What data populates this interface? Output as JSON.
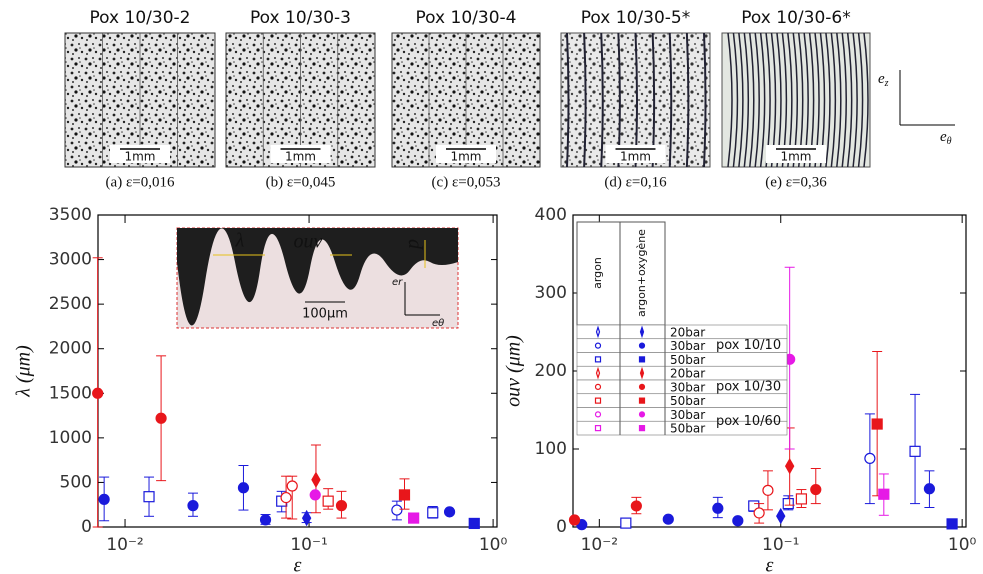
{
  "panels": [
    {
      "title": "Pox 10/30-2",
      "caption": "(a) ε=0,016",
      "scale": "1mm"
    },
    {
      "title": "Pox 10/30-3",
      "caption": "(b) ε=0,045",
      "scale": "1mm"
    },
    {
      "title": "Pox 10/30-4",
      "caption": "(c) ε=0,053",
      "scale": "1mm"
    },
    {
      "title": "Pox 10/30-5*",
      "caption": "(d) ε=0,16",
      "scale": "1mm"
    },
    {
      "title": "Pox 10/30-6*",
      "caption": "(e) ε=0,36",
      "scale": "1mm"
    }
  ],
  "frame": {
    "ez": {
      "base": "e",
      "sub": "z"
    },
    "etheta": {
      "base": "e",
      "sub": "θ"
    }
  },
  "chart_data": [
    {
      "type": "scatter",
      "xlabel": "ε",
      "ylabel": "λ (μm)",
      "xscale": "log",
      "xlim": [
        0.00713,
        1.05
      ],
      "xticks": [
        {
          "value": 0.01,
          "label": "10⁻²"
        },
        {
          "value": 0.1,
          "label": "10⁻¹"
        },
        {
          "value": 1,
          "label": "10⁰"
        }
      ],
      "ylim": [
        0,
        3500
      ],
      "yticks": [
        0,
        500,
        1000,
        1500,
        2000,
        2500,
        3000,
        3500
      ],
      "inset": {
        "lambda": "λ",
        "ouv": "ouv",
        "p": "p",
        "er": "er",
        "etheta": "eθ",
        "scale": "100μm"
      },
      "series": [
        {
          "color": "#1a1adb",
          "marker": "circle",
          "filled": true,
          "x": [
            0.0077,
            0.0234,
            0.044,
            0.058,
            0.58
          ],
          "values": [
            310,
            240,
            440,
            80,
            170
          ],
          "ylow": [
            70,
            120,
            190,
            30,
            null
          ],
          "yhigh": [
            560,
            380,
            690,
            140,
            null
          ]
        },
        {
          "color": "#1a1adb",
          "marker": "square",
          "filled": false,
          "x": [
            0.0135,
            0.071,
            0.47
          ],
          "values": [
            340,
            290,
            160
          ],
          "ylow": [
            120,
            170,
            100
          ],
          "yhigh": [
            560,
            400,
            230
          ]
        },
        {
          "color": "#1a1adb",
          "marker": "diamond",
          "filled": true,
          "x": [
            0.097
          ],
          "values": [
            100
          ],
          "ylow": [
            50
          ],
          "yhigh": [
            160
          ]
        },
        {
          "color": "#1a1adb",
          "marker": "circle",
          "filled": false,
          "x": [
            0.3
          ],
          "values": [
            190
          ],
          "ylow": [
            80
          ],
          "yhigh": [
            290
          ]
        },
        {
          "color": "#1a1adb",
          "marker": "square",
          "filled": true,
          "x": [
            0.79
          ],
          "values": [
            40
          ],
          "ylow": [
            null
          ],
          "yhigh": [
            null
          ]
        },
        {
          "color": "#e8161b",
          "marker": "circle",
          "filled": true,
          "x": [
            0.0071,
            0.0157,
            0.15
          ],
          "values": [
            1500,
            1220,
            240
          ],
          "ylow": [
            0,
            520,
            100
          ],
          "yhigh": [
            3020,
            1920,
            400
          ]
        },
        {
          "color": "#e8161b",
          "marker": "circle",
          "filled": false,
          "x": [
            0.075,
            0.081
          ],
          "values": [
            330,
            460
          ],
          "ylow": [
            100,
            90
          ],
          "yhigh": [
            570,
            570
          ]
        },
        {
          "color": "#e8161b",
          "marker": "diamond",
          "filled": true,
          "x": [
            0.109
          ],
          "values": [
            530
          ],
          "ylow": [
            160
          ],
          "yhigh": [
            920
          ]
        },
        {
          "color": "#e8161b",
          "marker": "square",
          "filled": false,
          "x": [
            0.127
          ],
          "values": [
            290
          ],
          "ylow": [
            200
          ],
          "yhigh": [
            430
          ]
        },
        {
          "color": "#e8161b",
          "marker": "square",
          "filled": true,
          "x": [
            0.33
          ],
          "values": [
            360
          ],
          "ylow": [
            200
          ],
          "yhigh": [
            540
          ]
        },
        {
          "color": "#e619e6",
          "marker": "circle",
          "filled": true,
          "x": [
            0.108
          ],
          "values": [
            360
          ],
          "ylow": [
            null
          ],
          "yhigh": [
            null
          ]
        },
        {
          "color": "#e619e6",
          "marker": "square",
          "filled": true,
          "x": [
            0.37
          ],
          "values": [
            100
          ],
          "ylow": [
            null
          ],
          "yhigh": [
            null
          ]
        }
      ]
    },
    {
      "type": "scatter",
      "xlabel": "ε",
      "ylabel": "ouv (μm)",
      "xscale": "log",
      "xlim": [
        0.00716,
        1.05
      ],
      "xticks": [
        {
          "value": 0.01,
          "label": "10⁻²"
        },
        {
          "value": 0.1,
          "label": "10⁻¹"
        },
        {
          "value": 1,
          "label": "10⁰"
        }
      ],
      "ylim": [
        0,
        400
      ],
      "yticks": [
        0,
        100,
        200,
        300,
        400
      ],
      "legend": {
        "headers": [
          "argon",
          "argon+oxygène"
        ],
        "rows": [
          {
            "label": "20bar",
            "color": "#1a1adb",
            "marker": "diamond"
          },
          {
            "label": "30bar",
            "color": "#1a1adb",
            "marker": "circle"
          },
          {
            "label": "50bar",
            "color": "#1a1adb",
            "marker": "square"
          },
          {
            "label": "20bar",
            "color": "#e8161b",
            "marker": "diamond"
          },
          {
            "label": "30bar",
            "color": "#e8161b",
            "marker": "circle"
          },
          {
            "label": "50bar",
            "color": "#e8161b",
            "marker": "square"
          },
          {
            "label": "30bar",
            "color": "#e619e6",
            "marker": "circle"
          },
          {
            "label": "50bar",
            "color": "#e619e6",
            "marker": "square"
          }
        ],
        "groups": [
          {
            "label": "pox 10/10",
            "color": "#1a1adb"
          },
          {
            "label": "pox 10/30",
            "color": "#e8161b"
          },
          {
            "label": "pox 10/60",
            "color": "#e619e6"
          }
        ]
      },
      "series": [
        {
          "color": "#1a1adb",
          "marker": "circle",
          "filled": true,
          "x": [
            0.008,
            0.024,
            0.045,
            0.058,
            0.66
          ],
          "values": [
            3,
            10,
            24,
            8,
            49
          ],
          "ylow": [
            null,
            null,
            12,
            null,
            25
          ],
          "yhigh": [
            null,
            null,
            38,
            null,
            72
          ]
        },
        {
          "color": "#1a1adb",
          "marker": "square",
          "filled": false,
          "x": [
            0.014,
            0.071,
            0.11,
            0.55
          ],
          "values": [
            5,
            27,
            30,
            97
          ],
          "ylow": [
            null,
            20,
            22,
            30
          ],
          "yhigh": [
            null,
            33,
            40,
            170
          ]
        },
        {
          "color": "#1a1adb",
          "marker": "diamond",
          "filled": true,
          "x": [
            0.1
          ],
          "values": [
            14
          ],
          "ylow": [
            null
          ],
          "yhigh": [
            null
          ]
        },
        {
          "color": "#1a1adb",
          "marker": "circle",
          "filled": false,
          "x": [
            0.31
          ],
          "values": [
            88
          ],
          "ylow": [
            30
          ],
          "yhigh": [
            145
          ]
        },
        {
          "color": "#1a1adb",
          "marker": "square",
          "filled": true,
          "x": [
            0.88
          ],
          "values": [
            4
          ],
          "ylow": [
            null
          ],
          "yhigh": [
            null
          ]
        },
        {
          "color": "#e8161b",
          "marker": "circle",
          "filled": true,
          "x": [
            0.0073,
            0.016,
            0.156
          ],
          "values": [
            9,
            27,
            48
          ],
          "ylow": [
            null,
            17,
            30
          ],
          "yhigh": [
            null,
            38,
            75
          ]
        },
        {
          "color": "#e8161b",
          "marker": "circle",
          "filled": false,
          "x": [
            0.076,
            0.085
          ],
          "values": [
            18,
            47
          ],
          "ylow": [
            5,
            22
          ],
          "yhigh": [
            30,
            72
          ]
        },
        {
          "color": "#e8161b",
          "marker": "diamond",
          "filled": true,
          "x": [
            0.112
          ],
          "values": [
            78
          ],
          "ylow": [
            28
          ],
          "yhigh": [
            127
          ]
        },
        {
          "color": "#e8161b",
          "marker": "square",
          "filled": false,
          "x": [
            0.13
          ],
          "values": [
            36
          ],
          "ylow": [
            25
          ],
          "yhigh": [
            48
          ]
        },
        {
          "color": "#e8161b",
          "marker": "square",
          "filled": true,
          "x": [
            0.34
          ],
          "values": [
            132
          ],
          "ylow": [
            40
          ],
          "yhigh": [
            225
          ]
        },
        {
          "color": "#e619e6",
          "marker": "circle",
          "filled": true,
          "x": [
            0.112
          ],
          "values": [
            215
          ],
          "ylow": [
            100
          ],
          "yhigh": [
            333
          ]
        },
        {
          "color": "#e619e6",
          "marker": "square",
          "filled": true,
          "x": [
            0.37
          ],
          "values": [
            42
          ],
          "ylow": [
            15
          ],
          "yhigh": [
            68
          ]
        }
      ]
    }
  ]
}
